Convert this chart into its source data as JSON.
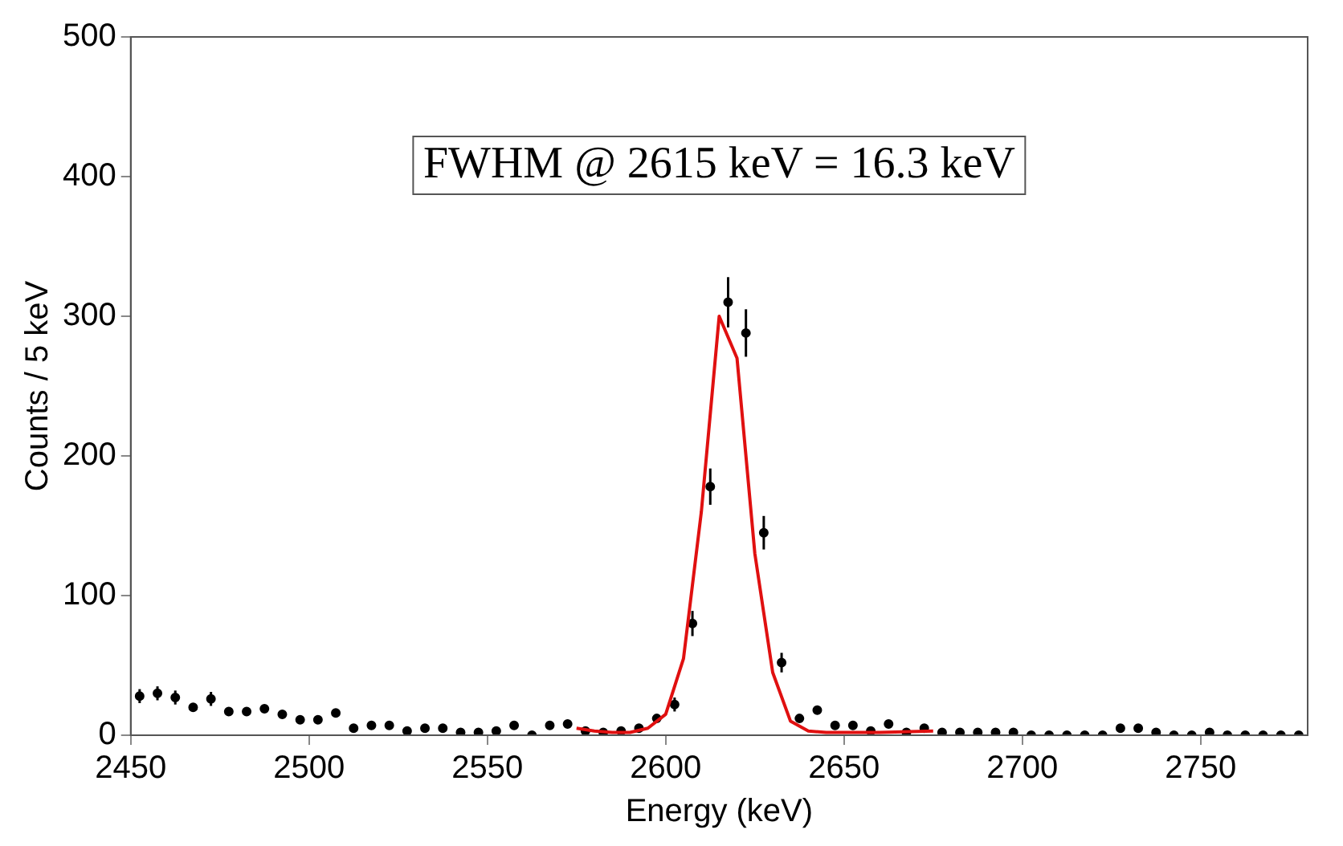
{
  "chart_data": {
    "type": "scatter",
    "xlabel": "Energy (keV)",
    "ylabel": "Counts / 5 keV",
    "annotations": [
      "FWHM @ 2615 keV = 16.3 keV"
    ],
    "xlim": [
      2450,
      2780
    ],
    "xticks": [
      2450,
      2500,
      2550,
      2600,
      2650,
      2700,
      2750
    ],
    "ylim": [
      0,
      500
    ],
    "yticks": [
      0,
      100,
      200,
      300,
      400,
      500
    ],
    "grid": false,
    "legend": false,
    "series": [
      {
        "color": "#000000",
        "marker": "circle",
        "x": [
          2452.5,
          2457.5,
          2462.5,
          2467.5,
          2472.5,
          2477.5,
          2482.5,
          2487.5,
          2492.5,
          2497.5,
          2502.5,
          2507.5,
          2512.5,
          2517.5,
          2522.5,
          2527.5,
          2532.5,
          2537.5,
          2542.5,
          2547.5,
          2552.5,
          2557.5,
          2562.5,
          2567.5,
          2572.5,
          2577.5,
          2582.5,
          2587.5,
          2592.5,
          2597.5,
          2602.5,
          2607.5,
          2612.5,
          2617.5,
          2622.5,
          2627.5,
          2632.5,
          2637.5,
          2642.5,
          2647.5,
          2652.5,
          2657.5,
          2662.5,
          2667.5,
          2672.5,
          2677.5,
          2682.5,
          2687.5,
          2692.5,
          2697.5,
          2702.5,
          2707.5,
          2712.5,
          2717.5,
          2722.5,
          2727.5,
          2732.5,
          2737.5,
          2742.5,
          2747.5,
          2752.5,
          2757.5,
          2762.5,
          2767.5,
          2772.5,
          2777.5
        ],
        "values": [
          28,
          30,
          27,
          20,
          26,
          17,
          17,
          19,
          15,
          11,
          11,
          16,
          5,
          7,
          7,
          3,
          5,
          5,
          2,
          2,
          3,
          7,
          0,
          7,
          8,
          3,
          2,
          3,
          5,
          12,
          22,
          80,
          178,
          310,
          288,
          145,
          52,
          12,
          18,
          7,
          7,
          3,
          8,
          2,
          5,
          2,
          2,
          2,
          2,
          2,
          0,
          0,
          0,
          0,
          0,
          5,
          5,
          2,
          0,
          0,
          2,
          0,
          0,
          0,
          0,
          0
        ],
        "errors": [
          5,
          5,
          5,
          null,
          5,
          null,
          null,
          null,
          null,
          null,
          null,
          null,
          null,
          null,
          null,
          null,
          null,
          null,
          null,
          null,
          null,
          null,
          null,
          null,
          null,
          null,
          null,
          null,
          null,
          null,
          5,
          9,
          13,
          18,
          17,
          12,
          7,
          null,
          null,
          null,
          null,
          null,
          null,
          null,
          null,
          null,
          null,
          null,
          null,
          null,
          null,
          null,
          null,
          null,
          null,
          null,
          null,
          null,
          null,
          null,
          null,
          null,
          null,
          null,
          null,
          null
        ]
      },
      {
        "type": "line",
        "color": "#e01010",
        "marker": "none",
        "line_style": "solid",
        "x": [
          2575,
          2580,
          2585,
          2590,
          2595,
          2600,
          2605,
          2610,
          2615,
          2620,
          2625,
          2630,
          2635,
          2640,
          2645,
          2650,
          2660,
          2675
        ],
        "values": [
          5,
          3,
          2,
          2,
          5,
          15,
          55,
          160,
          300,
          270,
          130,
          45,
          10,
          3,
          2,
          2,
          2,
          3
        ]
      }
    ]
  }
}
